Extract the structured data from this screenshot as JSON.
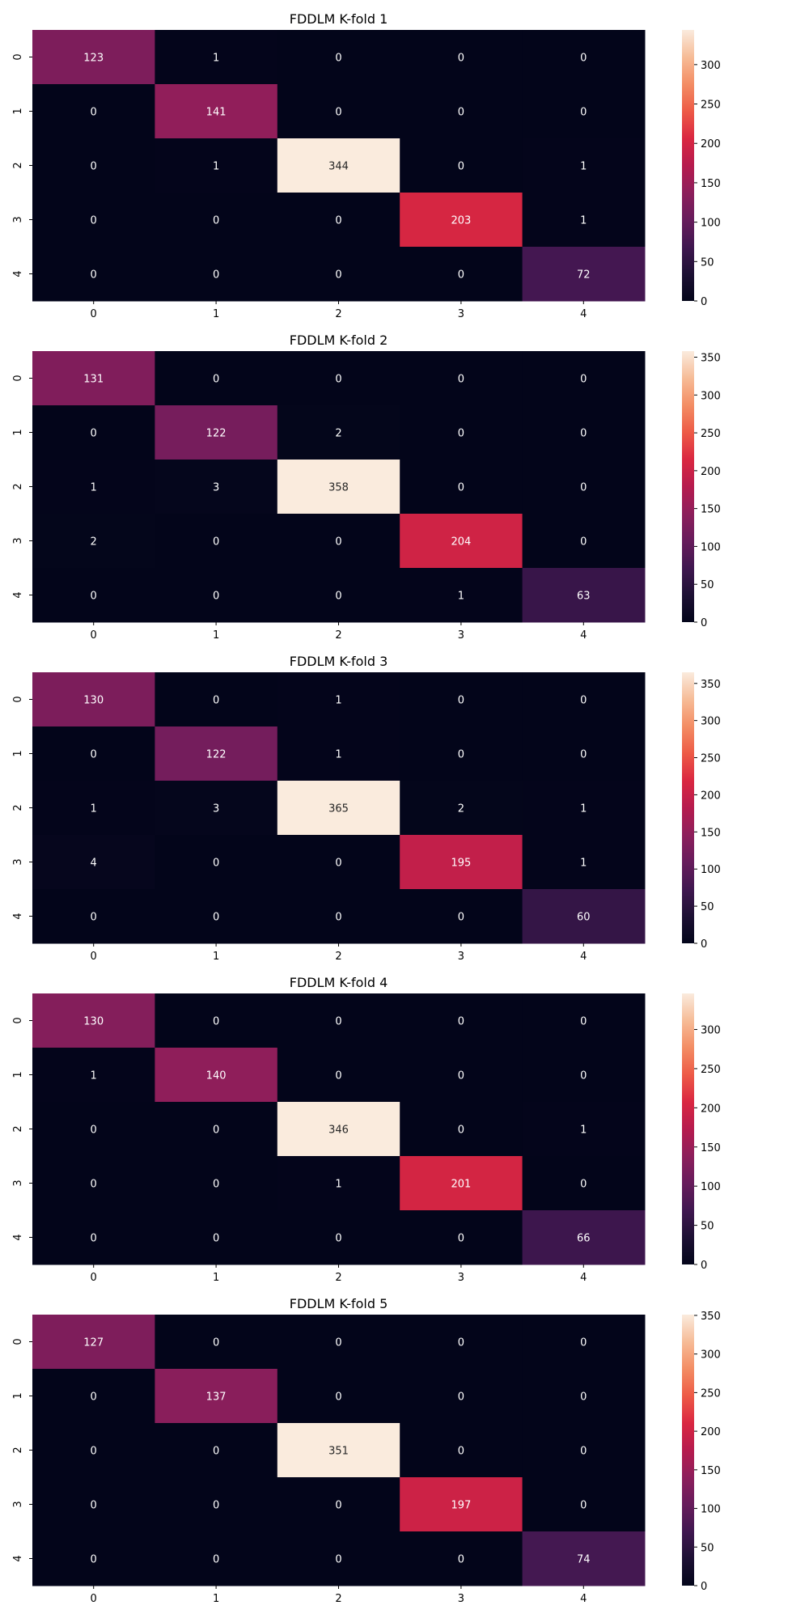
{
  "chart_data": [
    {
      "type": "heatmap",
      "title": "FDDLM K-fold 1",
      "x": [
        "0",
        "1",
        "2",
        "3",
        "4"
      ],
      "y": [
        "0",
        "1",
        "2",
        "3",
        "4"
      ],
      "values": [
        [
          123,
          1,
          0,
          0,
          0
        ],
        [
          0,
          141,
          0,
          0,
          0
        ],
        [
          0,
          1,
          344,
          0,
          1
        ],
        [
          0,
          0,
          0,
          203,
          1
        ],
        [
          0,
          0,
          0,
          0,
          72
        ]
      ],
      "colorbar": {
        "range": [
          0,
          344
        ],
        "ticks": [
          0,
          50,
          100,
          150,
          200,
          250,
          300
        ]
      }
    },
    {
      "type": "heatmap",
      "title": "FDDLM K-fold 2",
      "x": [
        "0",
        "1",
        "2",
        "3",
        "4"
      ],
      "y": [
        "0",
        "1",
        "2",
        "3",
        "4"
      ],
      "values": [
        [
          131,
          0,
          0,
          0,
          0
        ],
        [
          0,
          122,
          2,
          0,
          0
        ],
        [
          1,
          3,
          358,
          0,
          0
        ],
        [
          2,
          0,
          0,
          204,
          0
        ],
        [
          0,
          0,
          0,
          1,
          63
        ]
      ],
      "colorbar": {
        "range": [
          0,
          358
        ],
        "ticks": [
          0,
          50,
          100,
          150,
          200,
          250,
          300,
          350
        ]
      }
    },
    {
      "type": "heatmap",
      "title": "FDDLM K-fold 3",
      "x": [
        "0",
        "1",
        "2",
        "3",
        "4"
      ],
      "y": [
        "0",
        "1",
        "2",
        "3",
        "4"
      ],
      "values": [
        [
          130,
          0,
          1,
          0,
          0
        ],
        [
          0,
          122,
          1,
          0,
          0
        ],
        [
          1,
          3,
          365,
          2,
          1
        ],
        [
          4,
          0,
          0,
          195,
          1
        ],
        [
          0,
          0,
          0,
          0,
          60
        ]
      ],
      "colorbar": {
        "range": [
          0,
          365
        ],
        "ticks": [
          0,
          50,
          100,
          150,
          200,
          250,
          300,
          350
        ]
      }
    },
    {
      "type": "heatmap",
      "title": "FDDLM K-fold 4",
      "x": [
        "0",
        "1",
        "2",
        "3",
        "4"
      ],
      "y": [
        "0",
        "1",
        "2",
        "3",
        "4"
      ],
      "values": [
        [
          130,
          0,
          0,
          0,
          0
        ],
        [
          1,
          140,
          0,
          0,
          0
        ],
        [
          0,
          0,
          346,
          0,
          1
        ],
        [
          0,
          0,
          1,
          201,
          0
        ],
        [
          0,
          0,
          0,
          0,
          66
        ]
      ],
      "colorbar": {
        "range": [
          0,
          346
        ],
        "ticks": [
          0,
          50,
          100,
          150,
          200,
          250,
          300
        ]
      }
    },
    {
      "type": "heatmap",
      "title": "FDDLM K-fold 5",
      "x": [
        "0",
        "1",
        "2",
        "3",
        "4"
      ],
      "y": [
        "0",
        "1",
        "2",
        "3",
        "4"
      ],
      "values": [
        [
          127,
          0,
          0,
          0,
          0
        ],
        [
          0,
          137,
          0,
          0,
          0
        ],
        [
          0,
          0,
          351,
          0,
          0
        ],
        [
          0,
          0,
          0,
          197,
          0
        ],
        [
          0,
          0,
          0,
          0,
          74
        ]
      ],
      "colorbar": {
        "range": [
          0,
          351
        ],
        "ticks": [
          0,
          50,
          100,
          150,
          200,
          250,
          300,
          350
        ]
      }
    }
  ]
}
